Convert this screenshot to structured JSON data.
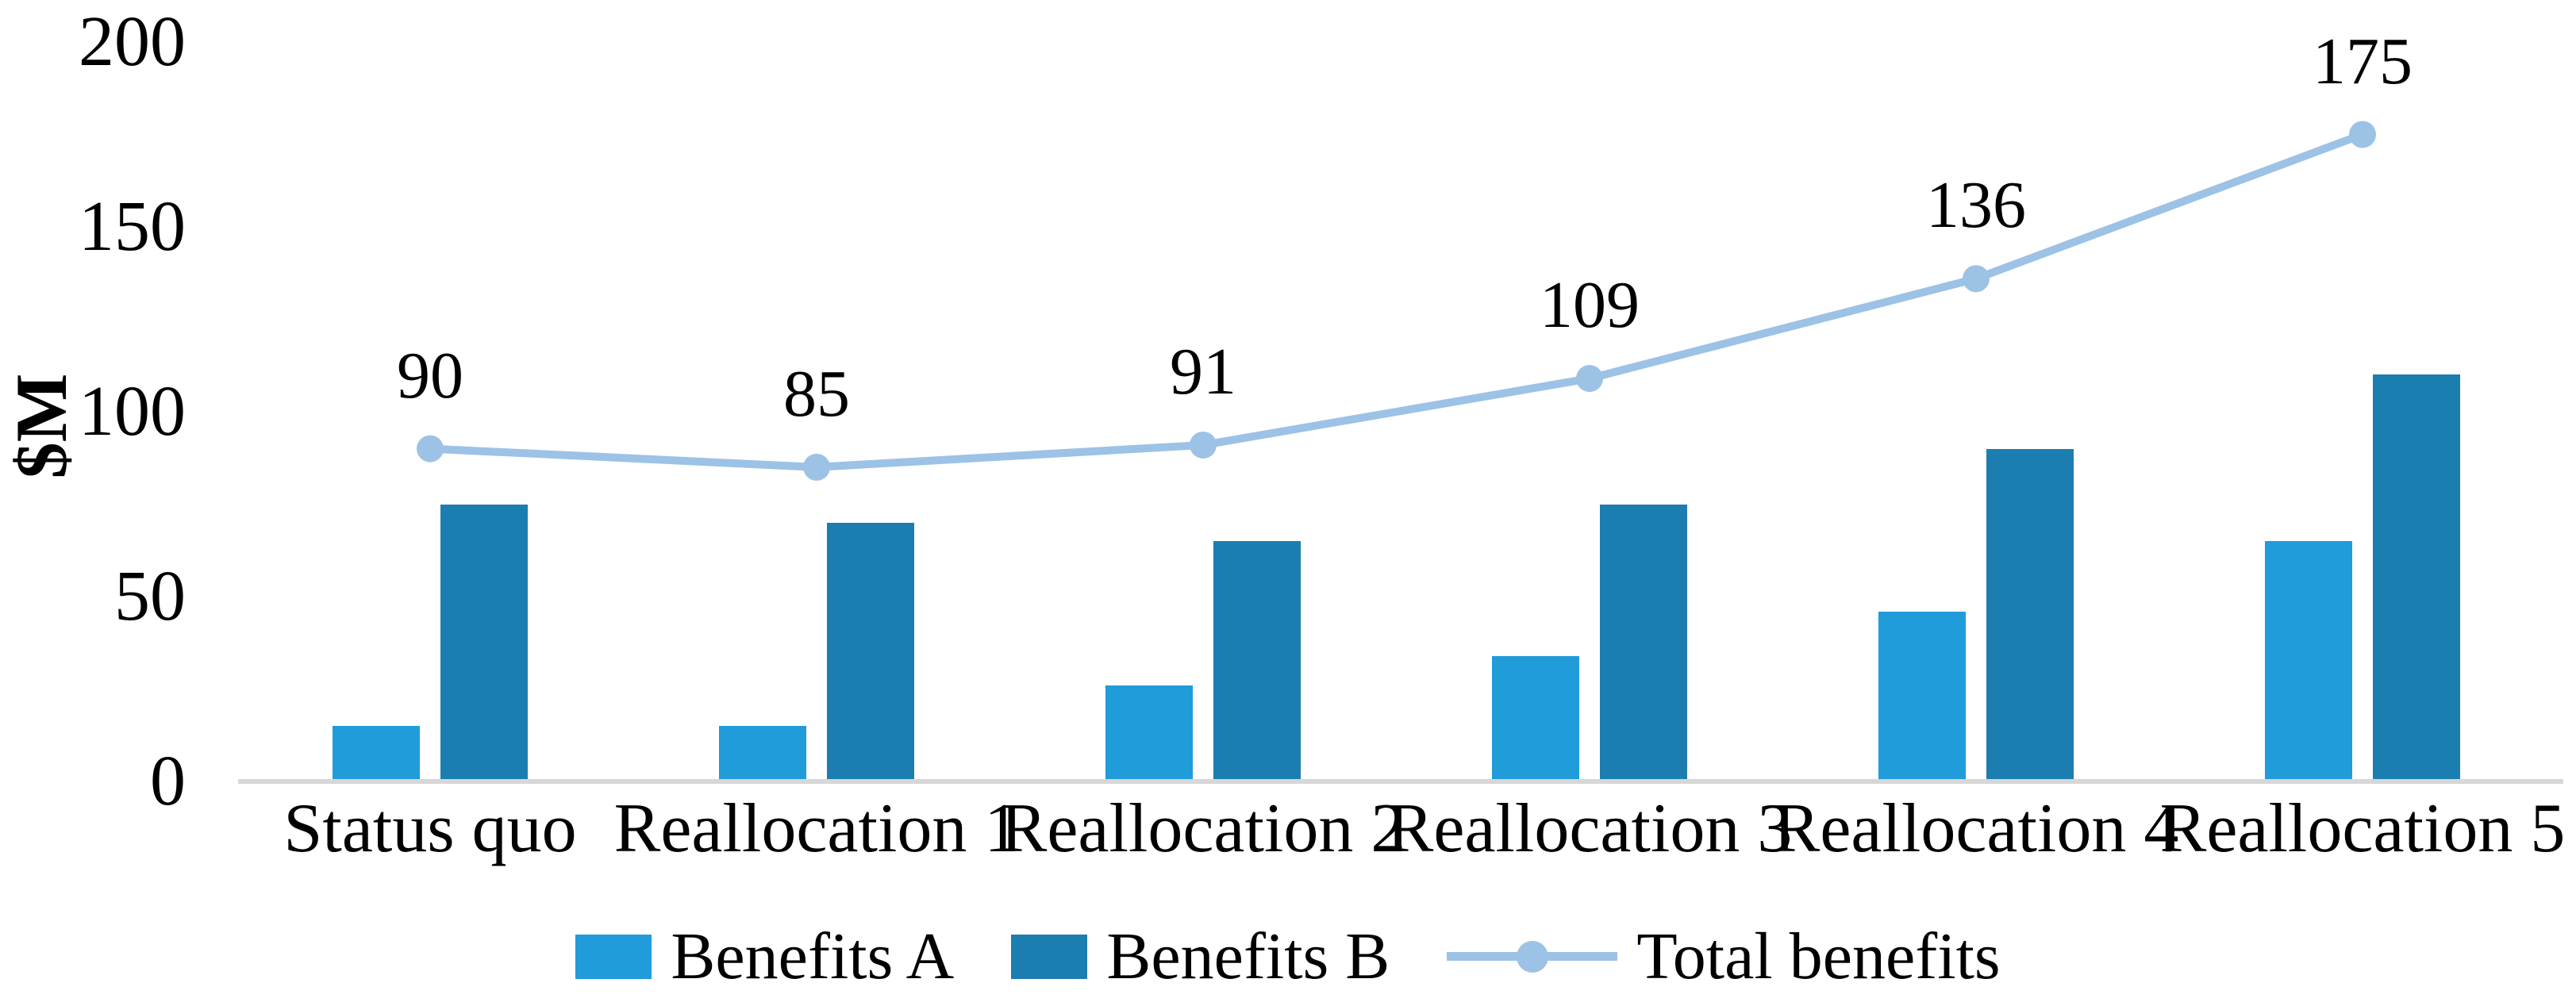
{
  "chart_data": {
    "type": "combo-bar-line",
    "title": "",
    "ylabel": "$M",
    "xlabel": "",
    "categories": [
      "Status quo",
      "Reallocation 1",
      "Reallocation 2",
      "Reallocation 3",
      "Reallocation 4",
      "Reallocation 5"
    ],
    "y_ticks": [
      0,
      50,
      100,
      150,
      200
    ],
    "ylim": [
      0,
      200
    ],
    "grid": false,
    "legend_position": "bottom",
    "series": [
      {
        "name": "Benefits A",
        "type": "bar",
        "color": "#1f9cd9",
        "values": [
          15,
          15,
          26,
          34,
          46,
          65
        ]
      },
      {
        "name": "Benefits B",
        "type": "bar",
        "color": "#1c7db0",
        "values": [
          75,
          70,
          65,
          75,
          90,
          110
        ]
      },
      {
        "name": "Total benefits",
        "type": "line",
        "color": "#9cc2e6",
        "values": [
          90,
          85,
          91,
          109,
          136,
          175
        ],
        "data_labels": [
          "90",
          "85",
          "91",
          "109",
          "136",
          "175"
        ]
      }
    ]
  },
  "legend": {
    "items": [
      {
        "label": "Benefits A"
      },
      {
        "label": "Benefits B"
      },
      {
        "label": "Total benefits"
      }
    ]
  },
  "colors": {
    "axis_line": "#d7d7d7",
    "text": "#000000",
    "background": "#ffffff"
  }
}
